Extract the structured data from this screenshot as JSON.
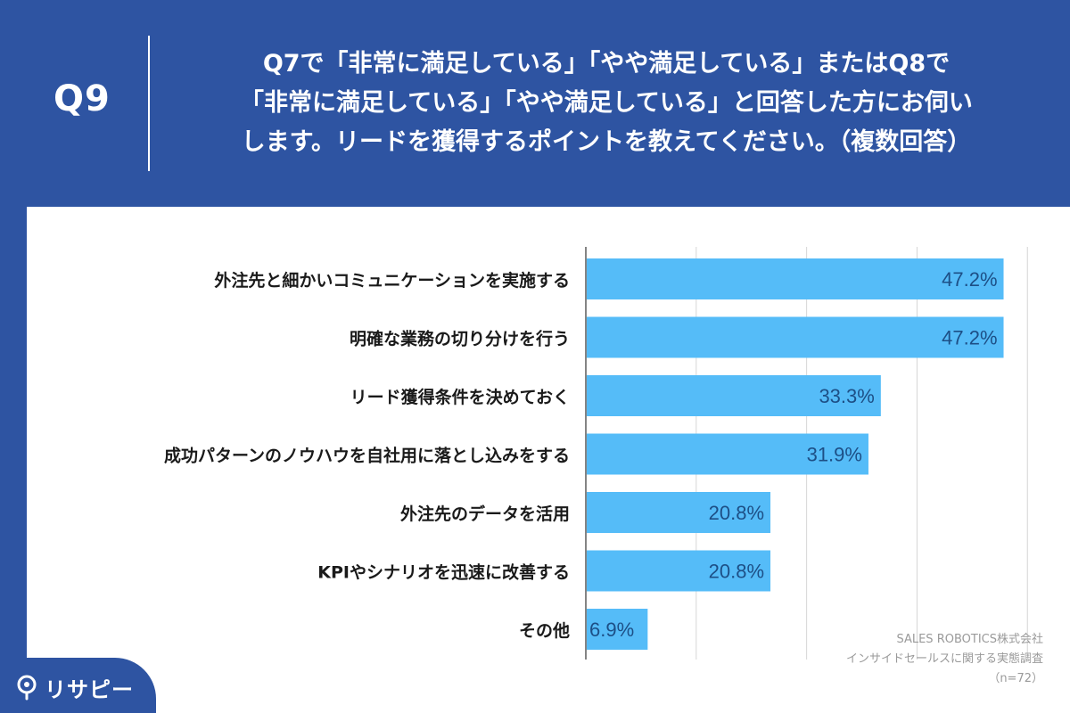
{
  "question": {
    "number": "Q9",
    "lines": [
      "Q7で「非常に満足している」「やや満足している」またはQ8で",
      "「非常に満足している」「やや満足している」と回答した方にお伺い",
      "します。リードを獲得するポイントを教えてください。（複数回答）"
    ]
  },
  "chart_data": {
    "type": "bar",
    "orientation": "horizontal",
    "categories": [
      "外注先と細かいコミュニケーションを実施する",
      "明確な業務の切り分けを行う",
      "リード獲得条件を決めておく",
      "成功パターンのノウハウを自社用に落とし込みをする",
      "外注先のデータを活用",
      "KPIやシナリオを迅速に改善する",
      "その他"
    ],
    "values": [
      47.2,
      47.2,
      33.3,
      31.9,
      20.8,
      20.8,
      6.9
    ],
    "value_labels": [
      "47.2%",
      "47.2%",
      "33.3%",
      "31.9%",
      "20.8%",
      "20.8%",
      "6.9%"
    ],
    "xlim": [
      0,
      50
    ],
    "grid": true,
    "bar_color": "#55bcf8",
    "label_color": "#1d4f86"
  },
  "credit": {
    "company": "SALES ROBOTICS株式会社",
    "survey": "インサイドセールスに関する実態調査",
    "sample": "（n=72）"
  },
  "brand": {
    "name": "リサピー",
    "color": "#2e54a2"
  }
}
